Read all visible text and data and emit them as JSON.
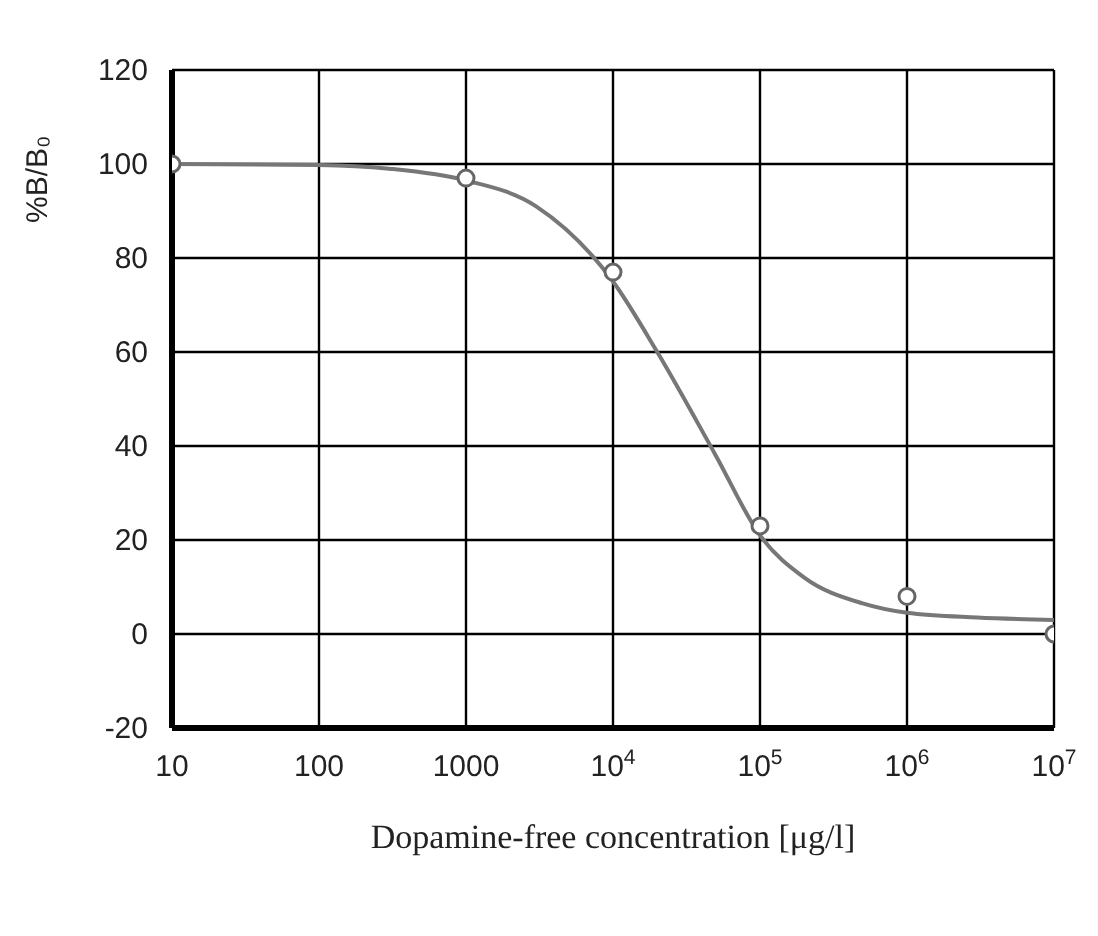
{
  "chart_data": {
    "type": "scatter",
    "xlabel": "Dopamine-free concentration [μg/l]",
    "ylabel": "%B/B₀",
    "log": "x",
    "grid": true,
    "marker": "circle",
    "xlim": [
      10,
      10000000
    ],
    "ylim": [
      -20,
      120
    ],
    "xticks": [
      10,
      100,
      1000,
      {
        "value": 10000,
        "label": "10$^{4}$"
      },
      {
        "value": 100000,
        "label": "10$^{5}$"
      },
      {
        "value": 1000000,
        "label": "10$^{6}$"
      },
      {
        "value": 10000000,
        "label": "10$^{7}$"
      }
    ],
    "yticks": [
      -20,
      0,
      20,
      40,
      60,
      80,
      100,
      120
    ],
    "series": [
      {
        "type": "scatter",
        "color": "#666666",
        "x": [
          10,
          1000,
          10000,
          100000,
          1000000,
          10000000
        ],
        "values": [
          100,
          97,
          77,
          23,
          8,
          0
        ]
      },
      {
        "type": "line",
        "color": "#777777",
        "marker": "none",
        "x": [
          10,
          100,
          300,
          1000,
          3000,
          10000,
          20000,
          50000,
          100000,
          200000,
          500000,
          1000000,
          3000000,
          10000000
        ],
        "values": [
          100,
          99.8,
          99,
          96.5,
          91,
          75,
          60,
          38,
          21,
          12,
          6.5,
          4.5,
          3.5,
          3
        ]
      }
    ]
  }
}
